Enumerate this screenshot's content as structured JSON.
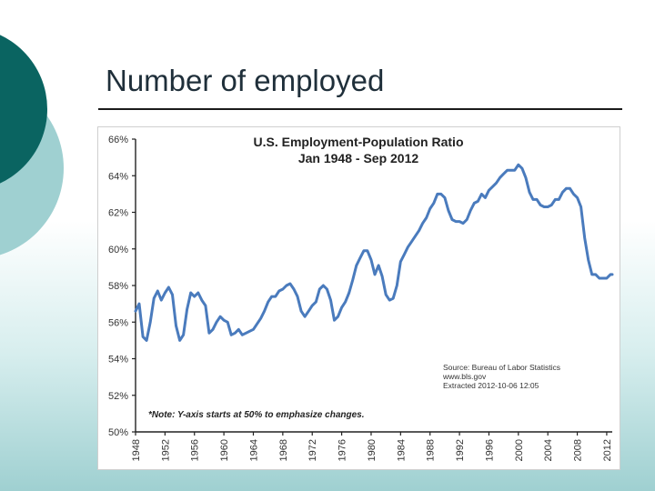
{
  "slide": {
    "title": "Number of employed"
  },
  "colors": {
    "line": "#4a7bbd",
    "deco_dark": "#0a6461",
    "deco_light": "#9fd0d1"
  },
  "chart_data": {
    "type": "line",
    "title": "U.S. Employment-Population Ratio",
    "subtitle": "Jan 1948 - Sep 2012",
    "ylim": [
      50,
      66
    ],
    "y_ticks": [
      "50%",
      "52%",
      "54%",
      "56%",
      "58%",
      "60%",
      "62%",
      "64%",
      "66%"
    ],
    "x_ticks": [
      "1948",
      "1952",
      "1956",
      "1960",
      "1964",
      "1968",
      "1972",
      "1976",
      "1980",
      "1984",
      "1988",
      "1992",
      "1996",
      "2000",
      "2004",
      "2008",
      "2012"
    ],
    "xlim": [
      1948,
      2012.75
    ],
    "source_lines": [
      "Source: Bureau of Labor Statistics",
      "www.bls.gov",
      "Extracted 2012-10-06 12:05"
    ],
    "note": "*Note: Y-axis starts at 50% to emphasize changes.",
    "grid": false,
    "series": [
      {
        "x": [
          1948.0,
          1948.5,
          1949.0,
          1949.5,
          1950.0,
          1950.5,
          1951.0,
          1951.5,
          1952.0,
          1952.5,
          1953.0,
          1953.5,
          1954.0,
          1954.5,
          1955.0,
          1955.5,
          1956.0,
          1956.5,
          1957.0,
          1957.5,
          1958.0,
          1958.5,
          1959.0,
          1959.5,
          1960.0,
          1960.5,
          1961.0,
          1961.5,
          1962.0,
          1962.5,
          1963.0,
          1963.5,
          1964.0,
          1964.5,
          1965.0,
          1965.5,
          1966.0,
          1966.5,
          1967.0,
          1967.5,
          1968.0,
          1968.5,
          1969.0,
          1969.5,
          1970.0,
          1970.5,
          1971.0,
          1971.5,
          1972.0,
          1972.5,
          1973.0,
          1973.5,
          1974.0,
          1974.5,
          1975.0,
          1975.5,
          1976.0,
          1976.5,
          1977.0,
          1977.5,
          1978.0,
          1978.5,
          1979.0,
          1979.5,
          1980.0,
          1980.5,
          1981.0,
          1981.5,
          1982.0,
          1982.5,
          1983.0,
          1983.5,
          1984.0,
          1984.5,
          1985.0,
          1985.5,
          1986.0,
          1986.5,
          1987.0,
          1987.5,
          1988.0,
          1988.5,
          1989.0,
          1989.5,
          1990.0,
          1990.5,
          1991.0,
          1991.5,
          1992.0,
          1992.5,
          1993.0,
          1993.5,
          1994.0,
          1994.5,
          1995.0,
          1995.5,
          1996.0,
          1996.5,
          1997.0,
          1997.5,
          1998.0,
          1998.5,
          1999.0,
          1999.5,
          2000.0,
          2000.5,
          2001.0,
          2001.5,
          2002.0,
          2002.5,
          2003.0,
          2003.5,
          2004.0,
          2004.5,
          2005.0,
          2005.5,
          2006.0,
          2006.5,
          2007.0,
          2007.5,
          2008.0,
          2008.5,
          2009.0,
          2009.5,
          2010.0,
          2010.5,
          2011.0,
          2011.5,
          2012.0,
          2012.5,
          2012.75
        ],
        "y": [
          56.6,
          57.0,
          55.2,
          55.0,
          56.0,
          57.3,
          57.7,
          57.2,
          57.6,
          57.9,
          57.5,
          55.8,
          55.0,
          55.3,
          56.7,
          57.6,
          57.4,
          57.6,
          57.2,
          56.9,
          55.4,
          55.6,
          56.0,
          56.3,
          56.1,
          56.0,
          55.3,
          55.4,
          55.6,
          55.3,
          55.4,
          55.5,
          55.6,
          55.9,
          56.2,
          56.6,
          57.1,
          57.4,
          57.4,
          57.7,
          57.8,
          58.0,
          58.1,
          57.8,
          57.4,
          56.6,
          56.3,
          56.6,
          56.9,
          57.1,
          57.8,
          58.0,
          57.8,
          57.2,
          56.1,
          56.3,
          56.8,
          57.1,
          57.6,
          58.3,
          59.1,
          59.5,
          59.9,
          59.9,
          59.4,
          58.6,
          59.1,
          58.5,
          57.5,
          57.2,
          57.3,
          58.0,
          59.3,
          59.7,
          60.1,
          60.4,
          60.7,
          61.0,
          61.4,
          61.7,
          62.2,
          62.5,
          63.0,
          63.0,
          62.8,
          62.1,
          61.6,
          61.5,
          61.5,
          61.4,
          61.6,
          62.1,
          62.5,
          62.6,
          63.0,
          62.8,
          63.2,
          63.4,
          63.6,
          63.9,
          64.1,
          64.3,
          64.3,
          64.3,
          64.6,
          64.4,
          63.9,
          63.1,
          62.7,
          62.7,
          62.4,
          62.3,
          62.3,
          62.4,
          62.7,
          62.7,
          63.1,
          63.3,
          63.3,
          63.0,
          62.8,
          62.3,
          60.6,
          59.4,
          58.6,
          58.6,
          58.4,
          58.4,
          58.4,
          58.6,
          58.6
        ]
      }
    ]
  }
}
